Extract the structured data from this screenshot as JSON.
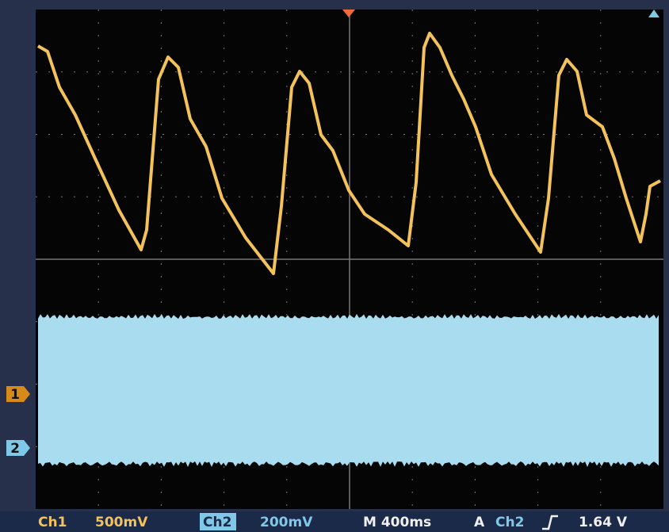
{
  "markers": {
    "ch1": "1",
    "ch2": "2"
  },
  "status_bar": {
    "ch1_label": "Ch1",
    "ch1_scale": "500mV",
    "ch2_label": "Ch2",
    "ch2_scale": "200mV",
    "timebase": "M 400ms",
    "trigger_mode": "A",
    "trigger_source": "Ch2",
    "trigger_level": "1.64 V"
  }
}
